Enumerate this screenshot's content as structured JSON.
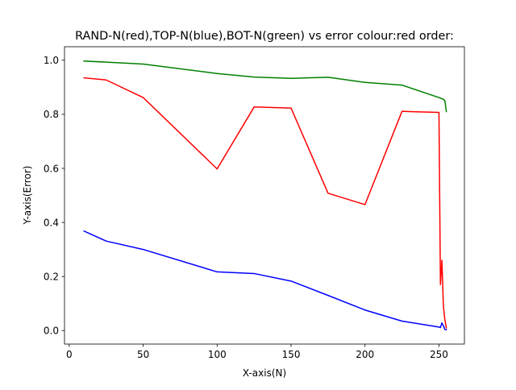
{
  "chart_data": {
    "type": "line",
    "title": "RAND-N(red),TOP-N(blue),BOT-N(green) vs error colour:red order:",
    "xlabel": "X-axis(N)",
    "ylabel": "Y-axis(Error)",
    "xlim": [
      -3.2,
      267.2
    ],
    "ylim": [
      -0.05,
      1.05
    ],
    "xticks": [
      0,
      50,
      100,
      150,
      200,
      250
    ],
    "xtick_labels": [
      "0",
      "50",
      "100",
      "150",
      "200",
      "250"
    ],
    "yticks": [
      0.0,
      0.2,
      0.4,
      0.6,
      0.8,
      1.0
    ],
    "ytick_labels": [
      "0.0",
      "0.2",
      "0.4",
      "0.6",
      "0.8",
      "1.0"
    ],
    "grid": false,
    "legend": "none",
    "series": [
      {
        "color": "#ff0000",
        "x": [
          10,
          25,
          50,
          100,
          125,
          150,
          175,
          200,
          225,
          250,
          251,
          252,
          253,
          254,
          255
        ],
        "y": [
          0.935,
          0.927,
          0.862,
          0.598,
          0.827,
          0.823,
          0.508,
          0.466,
          0.811,
          0.807,
          0.17,
          0.26,
          0.09,
          0.04,
          0.01
        ]
      },
      {
        "color": "#0000ff",
        "x": [
          10,
          25,
          50,
          100,
          125,
          150,
          175,
          200,
          225,
          250,
          251,
          252,
          253,
          254,
          255
        ],
        "y": [
          0.368,
          0.331,
          0.3,
          0.217,
          0.211,
          0.183,
          0.13,
          0.076,
          0.035,
          0.013,
          0.011,
          0.028,
          0.018,
          0.004,
          0.003
        ]
      },
      {
        "color": "#008000",
        "x": [
          10,
          25,
          50,
          100,
          125,
          150,
          175,
          200,
          225,
          250,
          251,
          252,
          253,
          254,
          255
        ],
        "y": [
          0.997,
          0.993,
          0.986,
          0.951,
          0.938,
          0.933,
          0.937,
          0.918,
          0.908,
          0.862,
          0.86,
          0.858,
          0.855,
          0.85,
          0.81
        ]
      }
    ]
  }
}
